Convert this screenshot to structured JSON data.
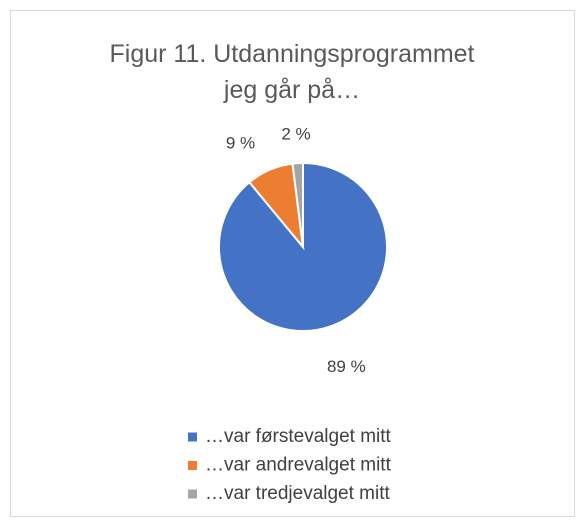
{
  "chart_data": {
    "type": "pie",
    "title": "Figur 11. Utdanningsprogrammet jeg går på…",
    "categories": [
      "…var førstevalget mitt",
      "…var andrevalget mitt",
      "…var tredjevalget mitt"
    ],
    "values": [
      89,
      9,
      2
    ],
    "value_labels": [
      "89 %",
      "9 %",
      "2 %"
    ],
    "colors": [
      "#4472c4",
      "#ed7d31",
      "#a5a5a5"
    ]
  }
}
